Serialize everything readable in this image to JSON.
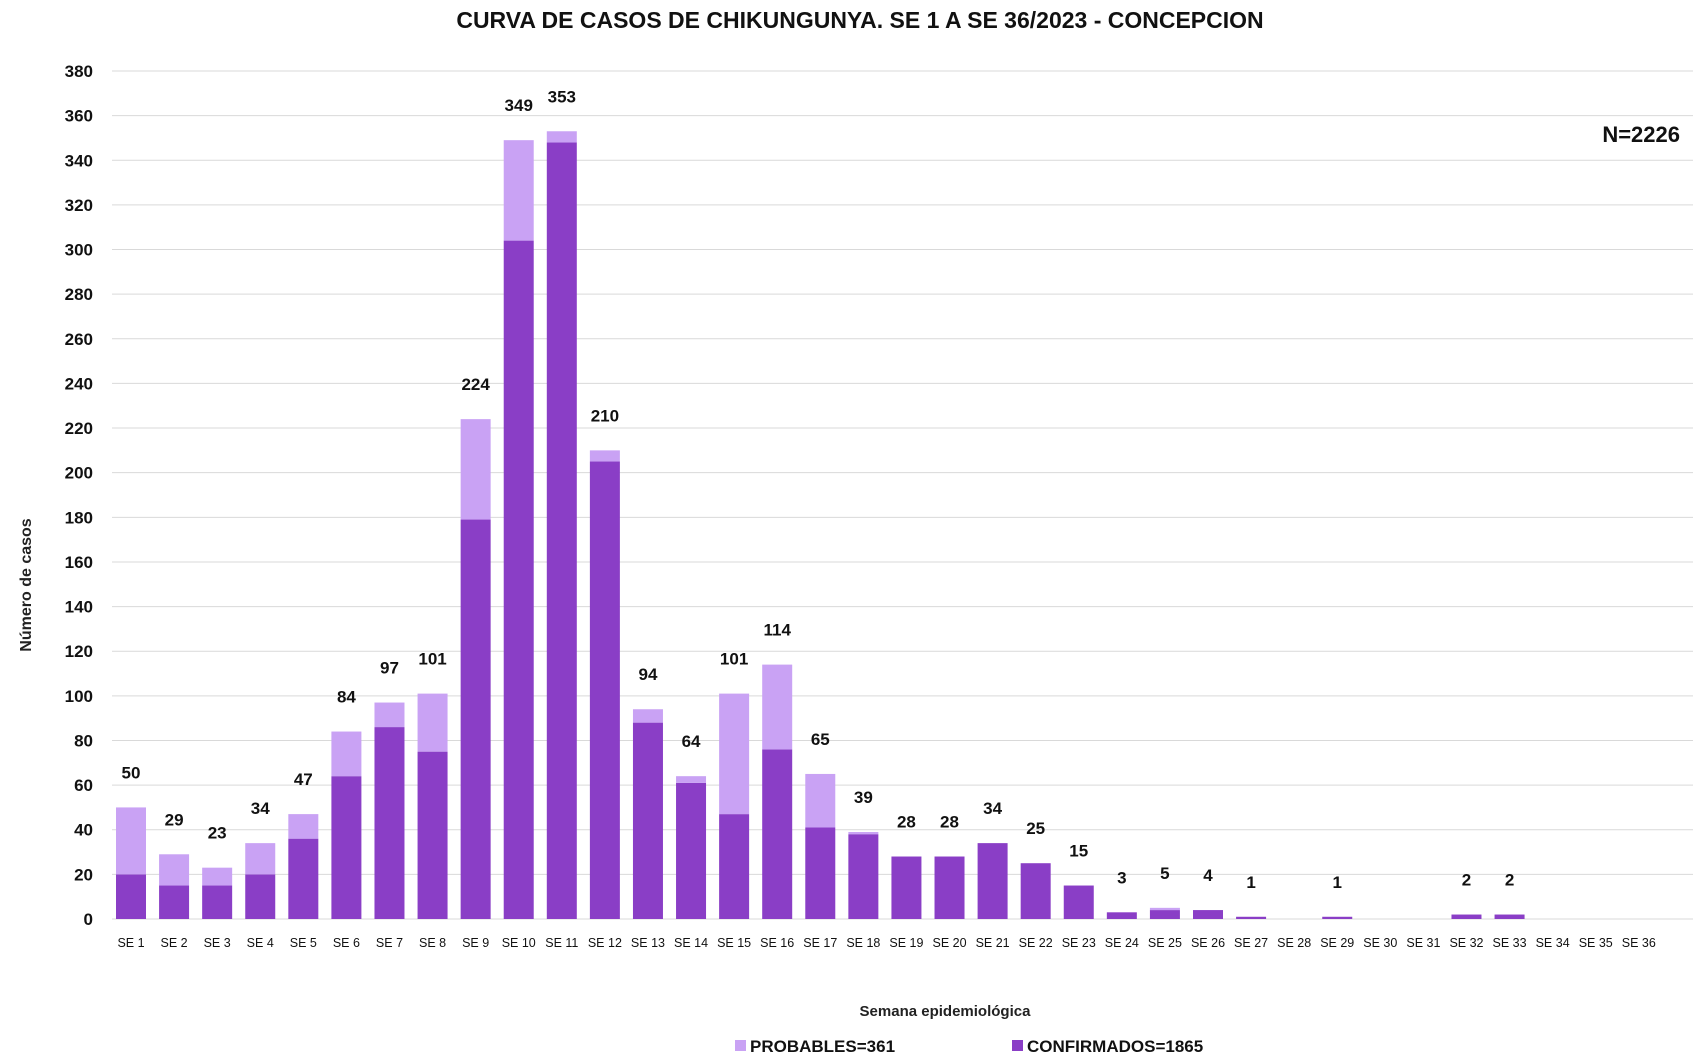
{
  "chart_data": {
    "type": "bar",
    "stacked": true,
    "title": "CURVA DE CASOS DE CHIKUNGUNYA. SE 1 A SE 36/2023 - CONCEPCION",
    "xlabel": "Semana epidemiológica",
    "ylabel": "Número de casos",
    "ylim": [
      0,
      380
    ],
    "ytick_step": 20,
    "grid": true,
    "legend_position": "bottom",
    "annotation": "N=2226",
    "categories": [
      "SE 1",
      "SE 2",
      "SE 3",
      "SE 4",
      "SE 5",
      "SE 6",
      "SE 7",
      "SE 8",
      "SE 9",
      "SE 10",
      "SE 11",
      "SE 12",
      "SE 13",
      "SE 14",
      "SE 15",
      "SE 16",
      "SE 17",
      "SE 18",
      "SE 19",
      "SE 20",
      "SE 21",
      "SE 22",
      "SE 23",
      "SE 24",
      "SE 25",
      "SE 26",
      "SE 27",
      "SE 28",
      "SE 29",
      "SE 30",
      "SE 31",
      "SE 32",
      "SE 33",
      "SE 34",
      "SE 35",
      "SE 36"
    ],
    "series": [
      {
        "name": "CONFIRMADOS=1865",
        "color": "#8a3ec6",
        "values": [
          20,
          15,
          15,
          20,
          36,
          64,
          86,
          75,
          179,
          304,
          348,
          205,
          88,
          61,
          47,
          76,
          41,
          38,
          28,
          28,
          34,
          25,
          15,
          3,
          4,
          4,
          1,
          0,
          1,
          0,
          0,
          2,
          2,
          0,
          0,
          0
        ]
      },
      {
        "name": "PROBABLES=361",
        "color": "#c9a2f4",
        "values": [
          30,
          14,
          8,
          14,
          11,
          20,
          11,
          26,
          45,
          45,
          5,
          5,
          6,
          3,
          54,
          38,
          24,
          1,
          0,
          0,
          0,
          0,
          0,
          0,
          1,
          0,
          0,
          0,
          0,
          0,
          0,
          0,
          0,
          0,
          0,
          0
        ]
      }
    ],
    "data_labels": [
      "50",
      "29",
      "23",
      "34",
      "47",
      "84",
      "97",
      "101",
      "224",
      "349",
      "353",
      "210",
      "94",
      "64",
      "101",
      "114",
      "65",
      "39",
      "28",
      "28",
      "34",
      "25",
      "15",
      "3",
      "5",
      "4",
      "1",
      "",
      "1",
      "",
      "",
      "2",
      "2",
      "",
      "",
      ""
    ]
  }
}
